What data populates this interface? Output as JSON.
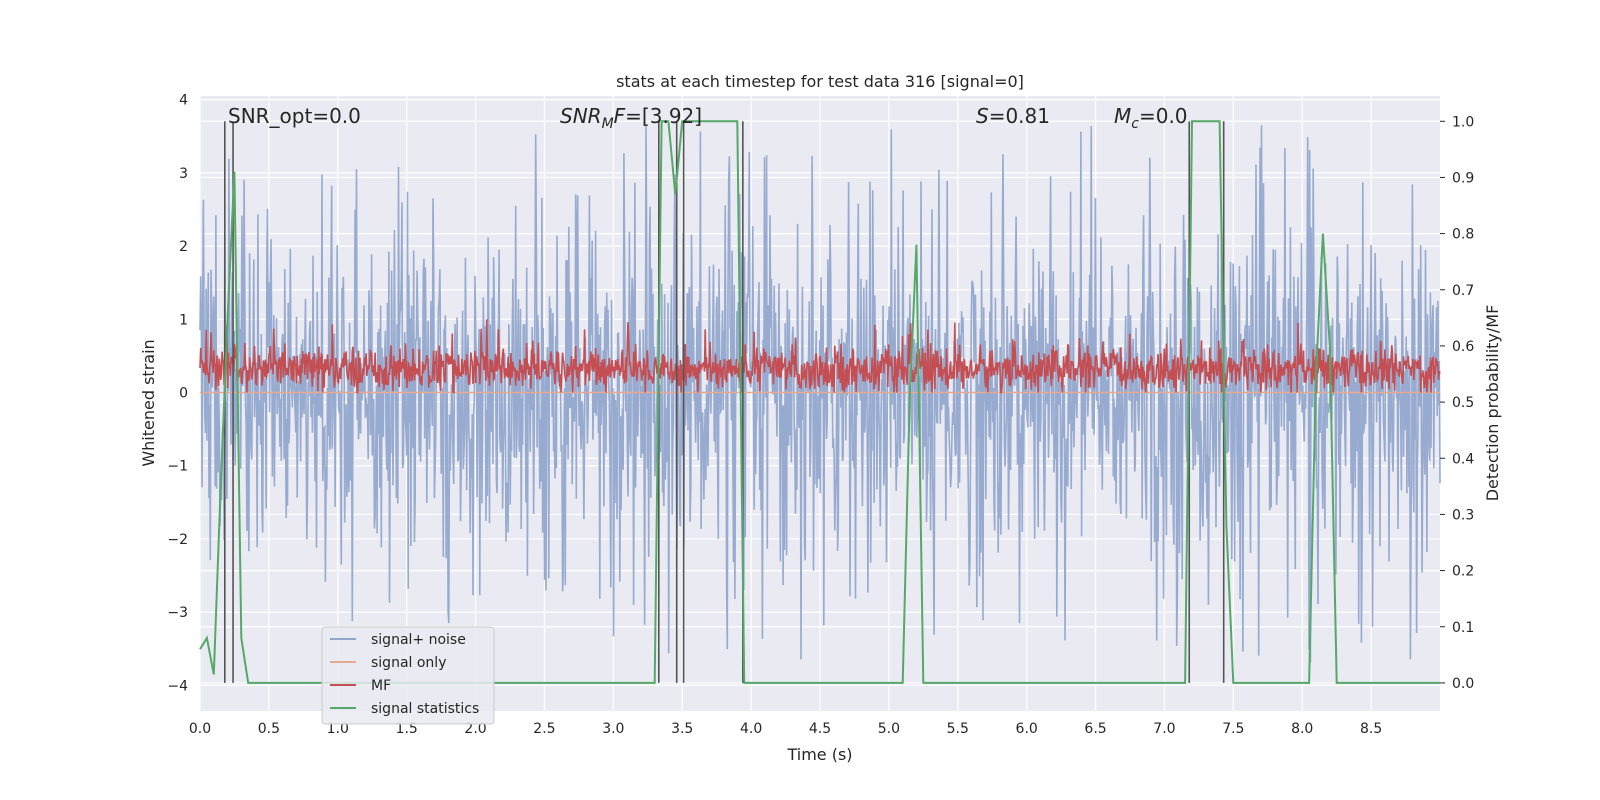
{
  "chart_data": {
    "type": "line",
    "title": "stats at each timestep for test data 316 [signal=0]",
    "xlabel": "Time (s)",
    "ylabel_left": "Whitened strain",
    "ylabel_right": "Detection probability/MF",
    "xlim": [
      0.0,
      9.0
    ],
    "ylim_left": [
      -4.35,
      4.05
    ],
    "ylim_right": [
      -0.05,
      1.045
    ],
    "x_ticks": [
      0.0,
      0.5,
      1.0,
      1.5,
      2.0,
      2.5,
      3.0,
      3.5,
      4.0,
      4.5,
      5.0,
      5.5,
      6.0,
      6.5,
      7.0,
      7.5,
      8.0,
      8.5
    ],
    "x_tick_labels": [
      "0.0",
      "0.5",
      "1.0",
      "1.5",
      "2.0",
      "2.5",
      "3.0",
      "3.5",
      "4.0",
      "4.5",
      "5.0",
      "5.5",
      "6.0",
      "6.5",
      "7.0",
      "7.5",
      "8.0",
      "8.5"
    ],
    "y_left_ticks": [
      4,
      3,
      2,
      1,
      0,
      -1,
      -2,
      -3,
      -4
    ],
    "y_left_tick_labels": [
      "4",
      "3",
      "2",
      "1",
      "0",
      "−1",
      "−2",
      "−3",
      "−4"
    ],
    "y_right_ticks": [
      1.0,
      0.9,
      0.8,
      0.7,
      0.6,
      0.5,
      0.4,
      0.3,
      0.2,
      0.1,
      0.0
    ],
    "y_right_tick_labels": [
      "1.0",
      "0.9",
      "0.8",
      "0.7",
      "0.6",
      "0.5",
      "0.4",
      "0.3",
      "0.2",
      "0.1",
      "0.0"
    ],
    "grid": true,
    "legend_position": "lower-left",
    "annotations": {
      "snr_opt": "SNR_opt=0.0",
      "snr_mf_sym": "SNR",
      "snr_mf_sub": "M",
      "snr_mf_mid": "F",
      "snr_mf_val": "=[3.92]",
      "s_sym": "S",
      "s_val": "=0.81",
      "mc_sym": "M",
      "mc_sub": "c",
      "mc_val": "=0.0"
    },
    "series": [
      {
        "name": "signal+ noise",
        "color": "#92a6cc",
        "axis": "left",
        "description_values": "noise, approximately within ±3.2 with peaks up to ~3.6 and down to ~-3.9"
      },
      {
        "name": "signal only",
        "color": "#e8a990",
        "axis": "left",
        "values": "constant 0.0"
      },
      {
        "name": "MF",
        "color": "#c44e52",
        "axis": "left",
        "description_values": "fluctuates between about 0.0 and 0.7, with peaks near 1.0"
      },
      {
        "name": "signal statistics",
        "color": "#55a868",
        "axis": "right",
        "x": [
          0.0,
          0.05,
          0.1,
          0.15,
          0.2,
          0.25,
          0.3,
          0.35,
          0.4,
          3.3,
          3.35,
          3.4,
          3.45,
          3.5,
          3.55,
          3.6,
          3.65,
          3.9,
          3.95,
          5.1,
          5.15,
          5.2,
          5.25,
          7.15,
          7.2,
          7.25,
          7.4,
          7.45,
          7.5,
          8.05,
          8.1,
          8.15,
          8.2,
          8.25,
          9.0
        ],
        "y": [
          0.06,
          0.08,
          0.015,
          0.35,
          0.65,
          0.91,
          0.08,
          0.0,
          0.0,
          0.0,
          1.0,
          1.0,
          0.87,
          1.0,
          1.0,
          1.0,
          1.0,
          1.0,
          0.0,
          0.0,
          0.5,
          0.78,
          0.0,
          0.0,
          1.0,
          1.0,
          1.0,
          0.28,
          0.0,
          0.0,
          0.55,
          0.8,
          0.6,
          0.0,
          0.0
        ]
      }
    ],
    "vertical_markers": [
      0.18,
      0.24,
      3.33,
      3.46,
      3.51,
      3.94,
      7.18,
      7.43
    ]
  },
  "legend": {
    "items": [
      {
        "label": "signal+ noise",
        "color": "#92a6cc"
      },
      {
        "label": "signal only",
        "color": "#e8a990"
      },
      {
        "label": "MF",
        "color": "#c44e52"
      },
      {
        "label": "signal statistics",
        "color": "#55a868"
      }
    ]
  },
  "colors": {
    "plot_background": "#eaeaf2",
    "grid": "#ffffff",
    "marker_line": "#555555"
  }
}
